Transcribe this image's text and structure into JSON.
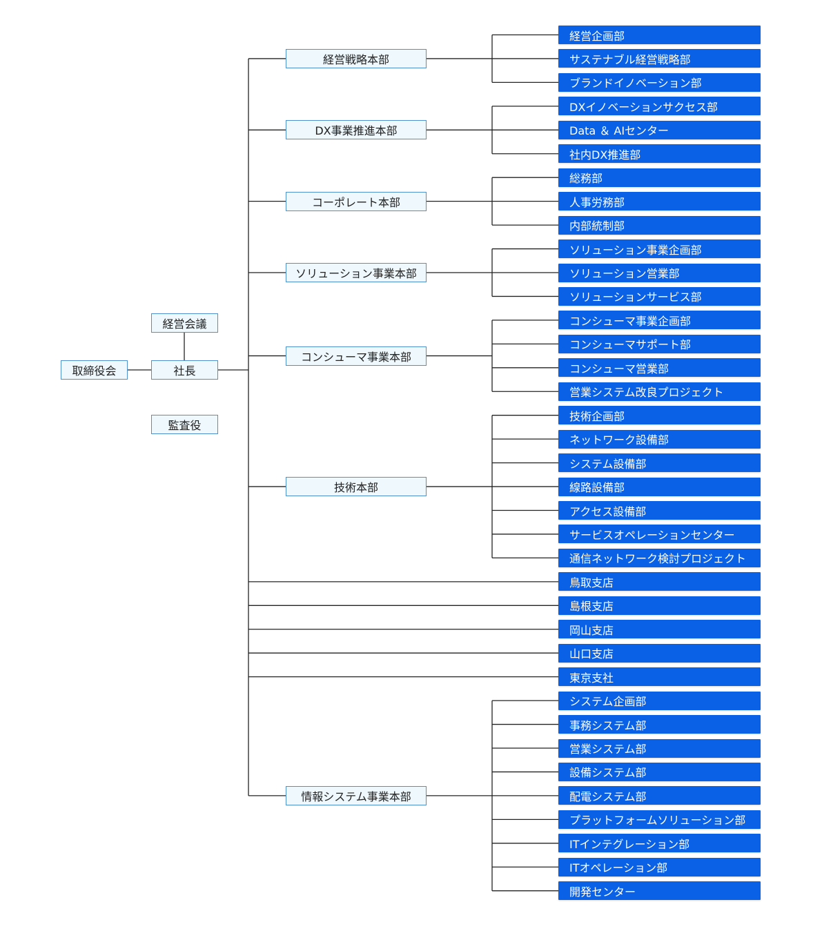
{
  "colors": {
    "department_fill": "#0a61e6",
    "department_text": "#ffffff",
    "node_fill": "#eef8fd",
    "node_border": "#4d8fcf",
    "connector": "#222222"
  },
  "executive": {
    "board": "取締役会",
    "management_meeting": "経営会議",
    "president": "社長",
    "auditor": "監査役"
  },
  "divisions": [
    {
      "name": "経営戦略本部",
      "departments": [
        "経営企画部",
        "サステナブル経営戦略部",
        "ブランドイノベーション部"
      ]
    },
    {
      "name": "DX事業推進本部",
      "departments": [
        "DXイノベーションサクセス部",
        "Data ＆ AIセンター",
        "社内DX推進部"
      ]
    },
    {
      "name": "コーポレート本部",
      "departments": [
        "総務部",
        "人事労務部",
        "内部統制部"
      ]
    },
    {
      "name": "ソリューション事業本部",
      "departments": [
        "ソリューション事業企画部",
        "ソリューション営業部",
        "ソリューションサービス部"
      ]
    },
    {
      "name": "コンシューマ事業本部",
      "departments": [
        "コンシューマ事業企画部",
        "コンシューマサポート部",
        "コンシューマ営業部",
        "営業システム改良プロジェクト"
      ]
    },
    {
      "name": "技術本部",
      "departments": [
        "技術企画部",
        "ネットワーク設備部",
        "システム設備部",
        "線路設備部",
        "アクセス設備部",
        "サービスオペレーションセンター",
        "通信ネットワーク検討プロジェクト"
      ]
    }
  ],
  "branches": [
    "鳥取支店",
    "島根支店",
    "岡山支店",
    "山口支店",
    "東京支社"
  ],
  "it_division": {
    "name": "情報システム事業本部",
    "departments": [
      "システム企画部",
      "事務システム部",
      "営業システム部",
      "設備システム部",
      "配電システム部",
      "プラットフォームソリューション部",
      "ITインテグレーション部",
      "ITオペレーション部",
      "開発センター"
    ]
  }
}
